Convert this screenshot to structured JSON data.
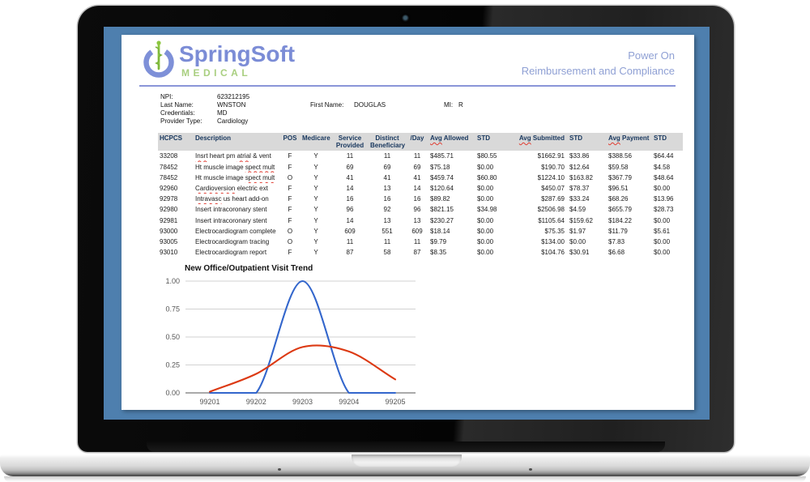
{
  "colors": {
    "desktop_blue": "#4e7fae",
    "logo_blue": "#7b8cd6",
    "logo_green": "#a9cf80",
    "tagline_blue": "#8fa0d4",
    "header_rule": "#8a95d8",
    "table_header_bg": "#d9d9d9",
    "table_header_text": "#17365d",
    "spellcheck_red": "#e03c31",
    "chart_blue": "#3366cc",
    "chart_red": "#dc3912"
  },
  "brand": {
    "name": "SpringSoft",
    "sub": "MEDICAL",
    "icon": "power-caduceus-icon"
  },
  "tagline": {
    "line1": "Power On",
    "line2": "Reimbursement and Compliance"
  },
  "provider": {
    "npi_label": "NPI:",
    "npi": "623212195",
    "last_name_label": "Last Name:",
    "last_name": "WNSTON",
    "credentials_label": "Credentials:",
    "credentials": "MD",
    "provider_type_label": "Provider Type:",
    "provider_type": "Cardiology",
    "first_name_label": "First Name:",
    "first_name": "DOUGLAS",
    "mi_label": "MI:",
    "mi": "R"
  },
  "table": {
    "columns": [
      {
        "label": "HCPCS"
      },
      {
        "label": "Description"
      },
      {
        "label": "POS"
      },
      {
        "label": "Medicare"
      },
      {
        "label": "Service Provided"
      },
      {
        "label": "Distinct Beneficiary"
      },
      {
        "label": "/Day"
      },
      {
        "label": "Avg Allowed",
        "wavy": "Avg"
      },
      {
        "label": "STD"
      },
      {
        "label": "Avg Submitted",
        "wavy": "Avg"
      },
      {
        "label": "STD"
      },
      {
        "label": "Avg Payment",
        "wavy": "Avg"
      },
      {
        "label": "STD"
      }
    ],
    "rows": [
      {
        "cells": [
          "33208",
          "Insrt heart pm atrial & vent",
          "F",
          "Y",
          "11",
          "11",
          "11",
          "$485.71",
          "$80.55",
          "$1662.91",
          "$33.86",
          "$388.56",
          "$64.44"
        ],
        "misspelled": [
          "Insrt",
          "atrial"
        ]
      },
      {
        "cells": [
          "78452",
          "Ht muscle image spect mult",
          "F",
          "Y",
          "69",
          "69",
          "69",
          "$75.18",
          "$0.00",
          "$190.70",
          "$12.64",
          "$59.58",
          "$4.58"
        ],
        "misspelled": [
          "spect mult"
        ]
      },
      {
        "cells": [
          "78452",
          "Ht muscle image spect mult",
          "O",
          "Y",
          "41",
          "41",
          "41",
          "$459.74",
          "$60.80",
          "$1224.10",
          "$163.82",
          "$367.79",
          "$48.64"
        ],
        "misspelled": [
          "spect mult"
        ]
      },
      {
        "cells": [
          "92960",
          "Cardioversion electric ext",
          "F",
          "Y",
          "14",
          "13",
          "14",
          "$120.64",
          "$0.00",
          "$450.07",
          "$78.37",
          "$96.51",
          "$0.00"
        ],
        "misspelled": [
          "Cardioversion"
        ]
      },
      {
        "cells": [
          "92978",
          "Intravasc us heart add-on",
          "F",
          "Y",
          "16",
          "16",
          "16",
          "$89.82",
          "$0.00",
          "$287.69",
          "$33.24",
          "$68.26",
          "$13.96"
        ],
        "misspelled": [
          "Intravasc"
        ]
      },
      {
        "cells": [
          "92980",
          "Insert intracoronary stent",
          "F",
          "Y",
          "96",
          "92",
          "96",
          "$821.15",
          "$34.98",
          "$2506.98",
          "$4.59",
          "$655.79",
          "$28.73"
        ],
        "misspelled": []
      },
      {
        "cells": [
          "92981",
          "Insert intracoronary stent",
          "F",
          "Y",
          "14",
          "13",
          "13",
          "$230.27",
          "$0.00",
          "$1105.64",
          "$159.62",
          "$184.22",
          "$0.00"
        ],
        "misspelled": []
      },
      {
        "cells": [
          "93000",
          "Electrocardiogram complete",
          "O",
          "Y",
          "609",
          "551",
          "609",
          "$18.14",
          "$0.00",
          "$75.35",
          "$1.97",
          "$11.79",
          "$5.61"
        ],
        "misspelled": []
      },
      {
        "cells": [
          "93005",
          "Electrocardiogram tracing",
          "O",
          "Y",
          "11",
          "11",
          "11",
          "$9.79",
          "$0.00",
          "$134.00",
          "$0.00",
          "$7.83",
          "$0.00"
        ],
        "misspelled": []
      },
      {
        "cells": [
          "93010",
          "Electrocardiogram report",
          "F",
          "Y",
          "87",
          "58",
          "87",
          "$8.35",
          "$0.00",
          "$104.76",
          "$30.91",
          "$6.68",
          "$0.00"
        ],
        "misspelled": []
      }
    ]
  },
  "chart_data": {
    "type": "line",
    "title": "New Office/Outpatient Visit Trend",
    "categories": [
      "99201",
      "99202",
      "99203",
      "99204",
      "99205"
    ],
    "series": [
      {
        "name": "blue",
        "color": "#3366cc",
        "values": [
          0,
          0,
          1.0,
          0,
          0
        ]
      },
      {
        "name": "red",
        "color": "#dc3912",
        "values": [
          0.01,
          0.17,
          0.41,
          0.37,
          0.12
        ]
      }
    ],
    "xlabel": "",
    "ylabel": "",
    "ylim": [
      0,
      1
    ],
    "yticks": [
      "0.00",
      "0.25",
      "0.50",
      "0.75",
      "1.00"
    ],
    "grid": true,
    "legend": "none"
  }
}
